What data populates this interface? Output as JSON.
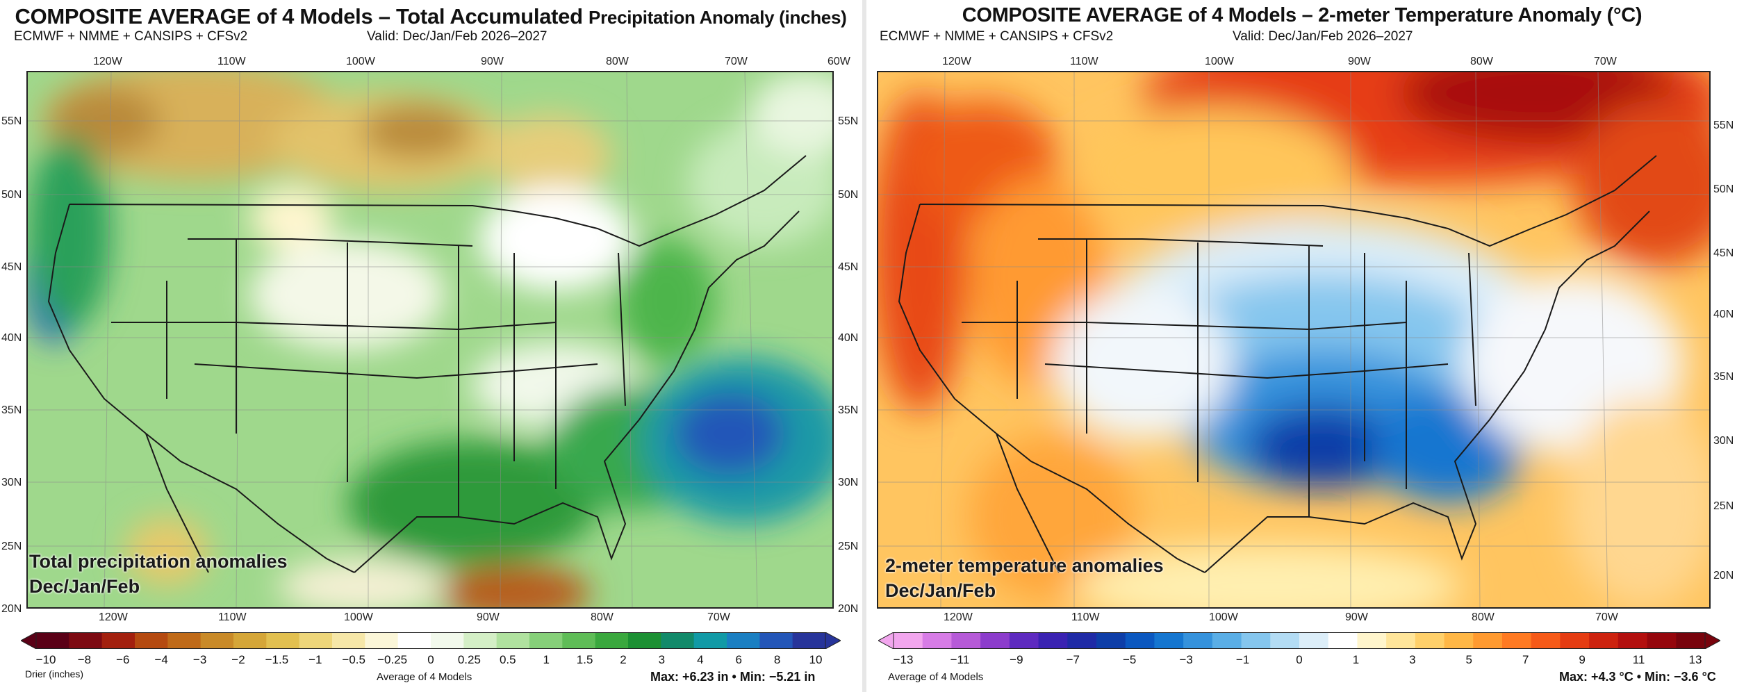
{
  "left": {
    "title_main": "COMPOSITE AVERAGE of 4 Models – Total Accumulated ",
    "title_small": "Precipitation Anomaly (inches)",
    "subtitle": "ECMWF + NMME + CANSIPS + CFSv2",
    "valid": "Valid: Dec/Jan/Feb 2026–2027",
    "overlay_line1": "Total precipitation anomalies",
    "overlay_line2": "Dec/Jan/Feb",
    "lon_top": [
      "120W",
      "110W",
      "100W",
      "90W",
      "80W",
      "70W",
      "60W"
    ],
    "lon_bottom": [
      "120W",
      "110W",
      "100W",
      "90W",
      "80W",
      "70W"
    ],
    "lat_left": [
      "55N",
      "50N",
      "45N",
      "40N",
      "35N",
      "30N",
      "25N",
      "20N"
    ],
    "lat_right": [
      "55N",
      "50N",
      "45N",
      "40N",
      "35N",
      "30N",
      "25N",
      "20N"
    ],
    "colorbar_ticks": [
      "−10",
      "−8",
      "−6",
      "−4",
      "−3",
      "−2",
      "−1.5",
      "−1",
      "−0.5",
      "−0.25",
      "0",
      "0.25",
      "0.5",
      "1",
      "1.5",
      "2",
      "3",
      "4",
      "6",
      "8",
      "10"
    ],
    "colorbar_colors": [
      "#5a0016",
      "#7d0a12",
      "#a3200e",
      "#b54a10",
      "#c06a18",
      "#c98a28",
      "#d5a638",
      "#e2c050",
      "#eed67a",
      "#f6e7a8",
      "#fbf6d8",
      "#ffffff",
      "#f2f9ec",
      "#d4efc6",
      "#b0e29f",
      "#86d079",
      "#5fbd57",
      "#3aa83e",
      "#1c9033",
      "#128a6a",
      "#119aa6",
      "#1a7fc2",
      "#2356b8",
      "#27349a"
    ],
    "footer_left": "Drier (inches)",
    "footer_center": "Average of 4 Models",
    "footer_right": "Max: +6.23 in  •  Min: −5.21 in"
  },
  "right": {
    "title_main": "COMPOSITE AVERAGE of 4 Models – 2-meter Temperature Anomaly (°C)",
    "subtitle": "ECMWF + NMME + CANSIPS + CFSv2",
    "valid": "Valid: Dec/Jan/Feb 2026–2027",
    "overlay_line1": "2-meter temperature anomalies",
    "overlay_line2": "Dec/Jan/Feb",
    "lon_top": [
      "120W",
      "110W",
      "100W",
      "90W",
      "80W",
      "70W"
    ],
    "lon_bottom": [
      "120W",
      "110W",
      "100W",
      "90W",
      "80W",
      "70W"
    ],
    "lat_right": [
      "55N",
      "50N",
      "45N",
      "40N",
      "35N",
      "30N",
      "25N",
      "20N"
    ],
    "colorbar_ticks": [
      "−13",
      "−11",
      "−9",
      "−7",
      "−5",
      "−3",
      "−1",
      "0",
      "1",
      "3",
      "5",
      "7",
      "9",
      "11",
      "13"
    ],
    "colorbar_colors": [
      "#f2a6ee",
      "#d77ce6",
      "#b65ad8",
      "#8c3ccc",
      "#5e2ac0",
      "#3a22b2",
      "#1f2aa6",
      "#0e3ea8",
      "#0b58c0",
      "#1576d0",
      "#3592dc",
      "#5aaee6",
      "#85c6ee",
      "#b3dcf4",
      "#dceef9",
      "#ffffff",
      "#fff5cc",
      "#ffe59a",
      "#ffd06a",
      "#ffb746",
      "#ff9a30",
      "#ff7a22",
      "#f65a18",
      "#e53c12",
      "#cd220e",
      "#b30f0e",
      "#95060c",
      "#78030c"
    ],
    "footer_center": "Average of 4 Models",
    "footer_right": "Max: +4.3 °C  •  Min: −3.6 °C"
  }
}
